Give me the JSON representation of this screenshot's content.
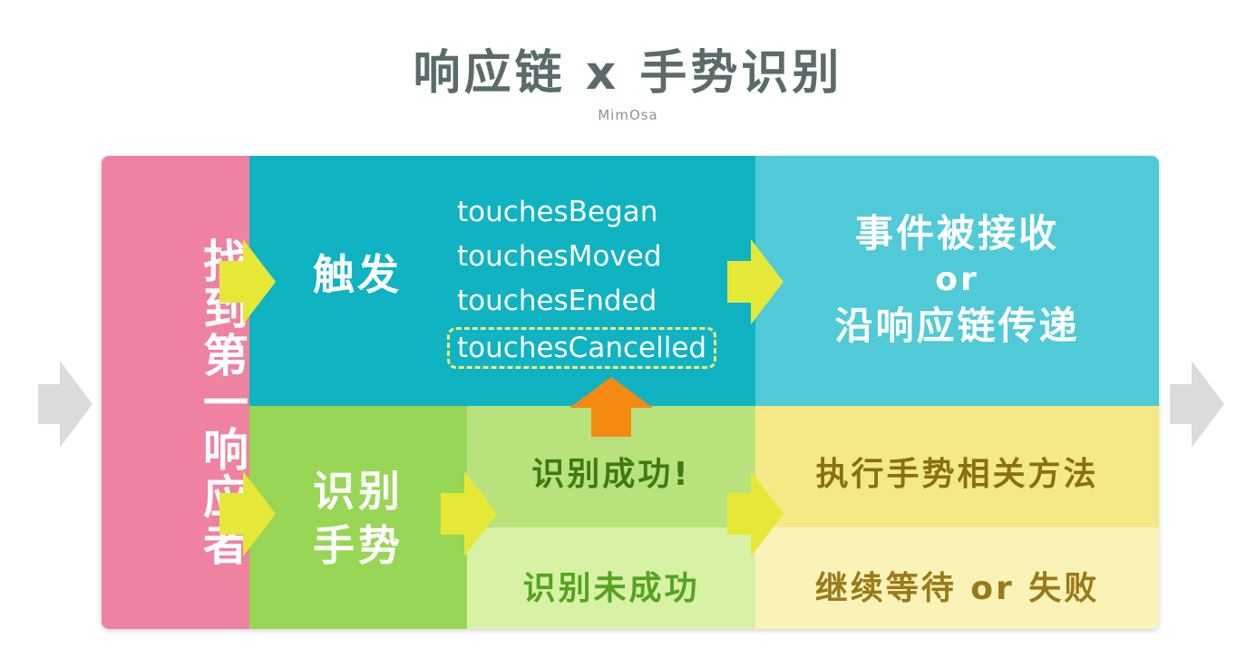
{
  "header": {
    "title": "响应链 x 手势识别",
    "subtitle": "MimOsa"
  },
  "find_first_responder": {
    "label": "找到第一响应者"
  },
  "trigger": {
    "label": "触发",
    "methods": [
      "touchesBegan",
      "touchesMoved",
      "touchesEnded",
      "touchesCancelled"
    ]
  },
  "received": {
    "line1": "事件被接收",
    "line2": "or",
    "line3": "沿响应链传递"
  },
  "recognize": {
    "line1": "识别",
    "line2": "手势"
  },
  "recognize_success": {
    "label": "识别成功!"
  },
  "recognize_fail": {
    "label": "识别未成功"
  },
  "execute": {
    "label": "执行手势相关方法"
  },
  "wait": {
    "label": "继续等待 or 失败"
  },
  "colors": {
    "pink": "#ee82a0",
    "teal": "#0fb3c2",
    "light_teal": "#4fcad6",
    "green": "#98d656",
    "yellow": "#f3ea85",
    "arrow_yellow": "#e6e838",
    "arrow_orange": "#f58a12",
    "arrow_gray": "#dcdcdc"
  }
}
